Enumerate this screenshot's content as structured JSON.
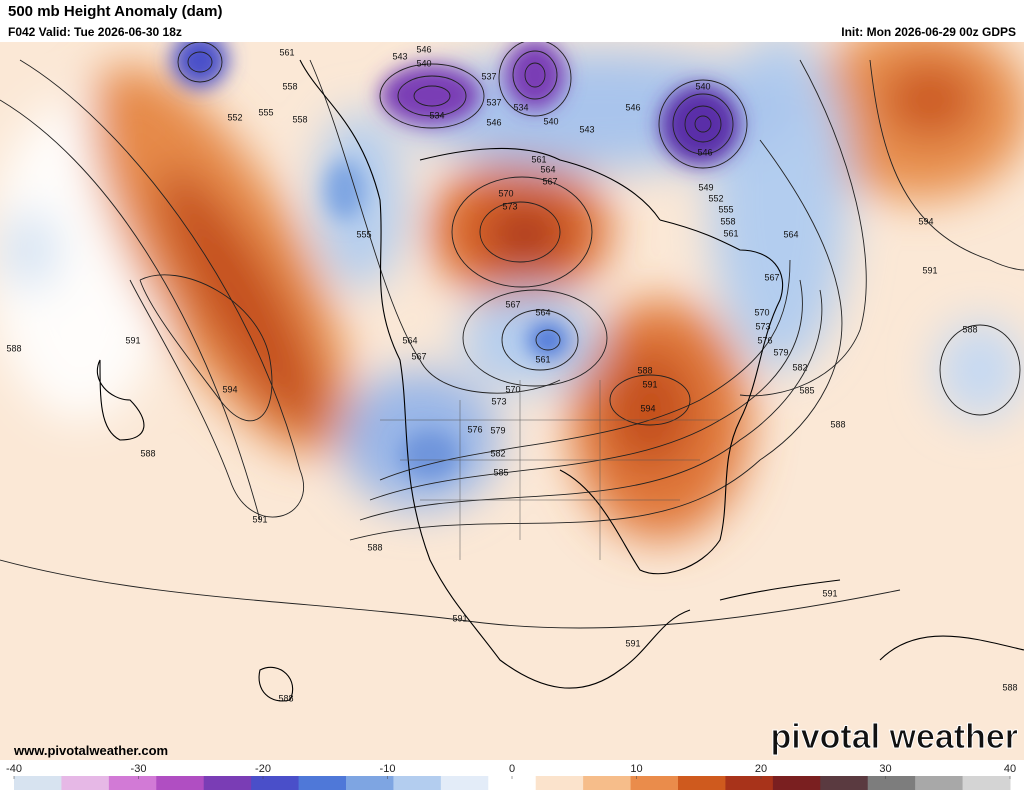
{
  "header": {
    "title": "500 mb Height Anomaly (dam)",
    "valid": "F042 Valid: Tue 2026-06-30 18z",
    "init": "Init: Mon 2026-06-29 00z GDPS"
  },
  "footer": {
    "website": "www.pivotalweather.com",
    "logo": "pivotal weather"
  },
  "colorbar": {
    "range": [
      -40,
      40
    ],
    "ticks": [
      -40,
      -30,
      -20,
      -10,
      0,
      10,
      20,
      30,
      40
    ],
    "colors": [
      "#d7e3f0",
      "#e6b8e6",
      "#d27ad6",
      "#b04ec2",
      "#7a3db5",
      "#4a4fc9",
      "#4f78d8",
      "#7ea5e2",
      "#b3cdef",
      "#e3ecf8",
      "#ffffff",
      "#fbe3cc",
      "#f6bd8a",
      "#ea8c4b",
      "#cf5a1e",
      "#a8331a",
      "#7a1f20",
      "#5a3a40",
      "#7d7d7d",
      "#a8a8a8",
      "#d4d4d4"
    ]
  },
  "contour_labels": [
    "561",
    "558",
    "552",
    "555",
    "558",
    "543",
    "546",
    "540",
    "537",
    "537",
    "534",
    "534",
    "546",
    "540",
    "543",
    "546",
    "540",
    "546",
    "549",
    "552",
    "555",
    "558",
    "561",
    "564",
    "567",
    "570",
    "573",
    "576",
    "579",
    "582",
    "585",
    "588",
    "594",
    "591",
    "588",
    "555",
    "564",
    "567",
    "570",
    "573",
    "576",
    "579",
    "582",
    "585",
    "567",
    "564",
    "561",
    "570",
    "573",
    "567",
    "564",
    "561",
    "588",
    "591",
    "594",
    "591",
    "594",
    "588",
    "591",
    "588",
    "588",
    "591",
    "591",
    "591",
    "588",
    "588"
  ]
}
